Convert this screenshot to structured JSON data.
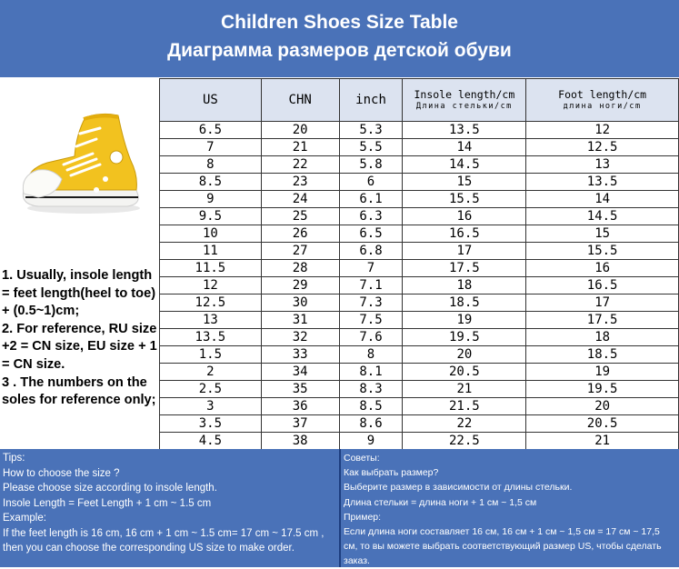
{
  "header": {
    "title_en": "Children Shoes Size Table",
    "title_ru": "Диаграмма размеров детской обуви"
  },
  "table": {
    "headers": {
      "us": "US",
      "chn": "CHN",
      "inch": "inch",
      "insole": "Insole length/cm",
      "insole_ru": "Длина стельки/cm",
      "foot": "Foot length/cm",
      "foot_ru": "длина ноги/cm"
    },
    "rows": [
      [
        "6.5",
        "20",
        "5.3",
        "13.5",
        "12"
      ],
      [
        "7",
        "21",
        "5.5",
        "14",
        "12.5"
      ],
      [
        "8",
        "22",
        "5.8",
        "14.5",
        "13"
      ],
      [
        "8.5",
        "23",
        "6",
        "15",
        "13.5"
      ],
      [
        "9",
        "24",
        "6.1",
        "15.5",
        "14"
      ],
      [
        "9.5",
        "25",
        "6.3",
        "16",
        "14.5"
      ],
      [
        "10",
        "26",
        "6.5",
        "16.5",
        "15"
      ],
      [
        "11",
        "27",
        "6.8",
        "17",
        "15.5"
      ],
      [
        "11.5",
        "28",
        "7",
        "17.5",
        "16"
      ],
      [
        "12",
        "29",
        "7.1",
        "18",
        "16.5"
      ],
      [
        "12.5",
        "30",
        "7.3",
        "18.5",
        "17"
      ],
      [
        "13",
        "31",
        "7.5",
        "19",
        "17.5"
      ],
      [
        "13.5",
        "32",
        "7.6",
        "19.5",
        "18"
      ],
      [
        "1.5",
        "33",
        "8",
        "20",
        "18.5"
      ],
      [
        "2",
        "34",
        "8.1",
        "20.5",
        "19"
      ],
      [
        "2.5",
        "35",
        "8.3",
        "21",
        "19.5"
      ],
      [
        "3",
        "36",
        "8.5",
        "21.5",
        "20"
      ],
      [
        "3.5",
        "37",
        "8.6",
        "22",
        "20.5"
      ],
      [
        "4.5",
        "38",
        "9",
        "22.5",
        "21"
      ]
    ]
  },
  "notes": [
    "1. Usually, insole length = feet length(heel to toe) + (0.5~1)cm;",
    "2. For reference, RU size +2 = CN size, EU size + 1 = CN size.",
    "3 . The numbers on the soles for reference only;"
  ],
  "tips_en": [
    "Tips:",
    "How to choose the size ?",
    "Please choose size according to insole length.",
    "Insole Length = Feet Length + 1 cm ~ 1.5 cm",
    "Example:",
    "If the feet length is 16 cm, 16 cm + 1 cm ~ 1.5 cm= 17 cm ~ 17.5 cm , then you can choose the corresponding US size to make order."
  ],
  "tips_ru": [
    "Советы:",
    "Как выбрать размер?",
    "Выберите размер в зависимости от длины стельки.",
    "Длина стельки = длина ноги + 1 см ~ 1,5 см",
    "Пример:",
    "Если длина ноги составляет 16 см, 16 см + 1 см ~ 1,5 см = 17 см ~ 17,5 см, то вы можете выбрать соответствующий размер US, чтобы сделать заказ."
  ],
  "colors": {
    "banner": "#4a72b8",
    "header_row": "#dce3f0",
    "shoe": "#f2c21f"
  },
  "image": {
    "icon": "yellow-high-top-canvas-shoe-icon"
  }
}
